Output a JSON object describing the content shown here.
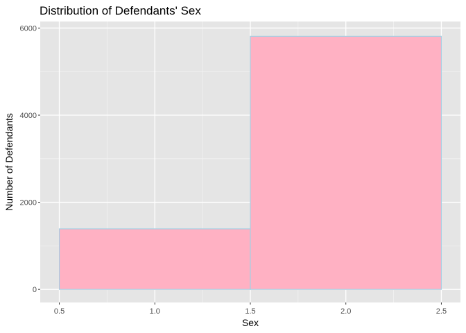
{
  "chart_data": {
    "type": "bar",
    "title": "Distribution of Defendants' Sex",
    "xlabel": "Sex",
    "ylabel": "Number of Defendants",
    "xlim": [
      0.4,
      2.6
    ],
    "ylim": [
      -300,
      6150
    ],
    "x_ticks": [
      0.5,
      1.0,
      1.5,
      2.0,
      2.5
    ],
    "x_tick_labels": [
      "0.5",
      "1.0",
      "1.5",
      "2.0",
      "2.5"
    ],
    "y_ticks": [
      0,
      2000,
      4000,
      6000
    ],
    "y_tick_labels": [
      "0",
      "2000",
      "4000",
      "6000"
    ],
    "bins": [
      {
        "x_start": 0.5,
        "x_end": 1.5,
        "value": 1390
      },
      {
        "x_start": 1.5,
        "x_end": 2.5,
        "value": 5810
      }
    ],
    "grid": true,
    "colors": {
      "panel_background": "#e5e5e5",
      "grid_major": "#ffffff",
      "grid_minor": "#f2f2f2",
      "bar_fill": "#ffb1c3",
      "bar_outline": "#a6cfe3"
    }
  }
}
